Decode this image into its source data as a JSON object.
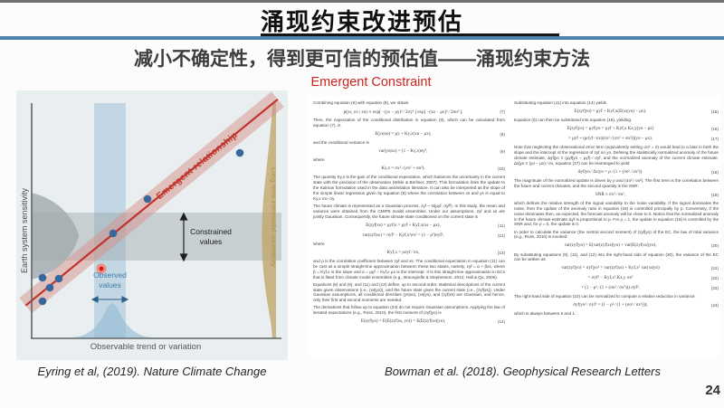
{
  "slide": {
    "title": "涌现约束改进预估",
    "subtitle": "减小不确定性，得到更可信的预估值——涌现约束方法",
    "tagline": "Emergent Constraint",
    "page_number": "24",
    "accent_blue": "#4d85ac",
    "tagline_color": "#cd251c"
  },
  "figure": {
    "caption": "Eyring et al, (2019). Nature Climate Change",
    "y_axis_label": "Earth system sensitivity",
    "x_axis_label": "Observable trend or variation",
    "relationship_label": "Emergent relationship",
    "right_dist_label": "Long-term intermodel uncertainty",
    "constrained_label": "Constrained values",
    "observed_label": "Observed values",
    "colors": {
      "background": "#e9eef1",
      "regression_line": "#bf332a",
      "confidence_band": "#d8918a",
      "model_point": "#38679e",
      "observed_point_core": "#cc1d12",
      "observed_point_ring": "#ef9088",
      "observed_band": "#a9c7da",
      "constrained_band": "#9aa4a8",
      "intermodel_dist": "#c0a66c",
      "label_red": "#c03a2f",
      "label_blue": "#3d7dad",
      "label_tan": "#ad924e"
    },
    "model_points": [
      [
        29,
        207
      ],
      [
        47,
        208
      ],
      [
        37,
        218
      ],
      [
        29,
        233
      ],
      [
        107,
        158
      ],
      [
        145,
        120
      ],
      [
        247,
        69
      ]
    ],
    "observed_point": [
      94,
      197
    ]
  },
  "paper": {
    "caption": "Bowman et al. (2018). Geophysical Research Letters",
    "col1": [
      {
        "type": "p",
        "text": "Combining equation (6) with equation (8), we obtain"
      },
      {
        "type": "eq",
        "num": "(7)",
        "text": "p(ys, yo | xo) ∝ exp[ −(ys − μy)² ⁄ 2σy² ] exp[ −(xo − μx)² ⁄ 2σo² ]."
      },
      {
        "type": "p",
        "text": "Then, the expectation of the conditional distribution in equation (8), which can be calculated from equation (7), is"
      },
      {
        "type": "eq",
        "num": "(8)",
        "text": "E(ys|xo) = μy + Ky,x(xo − μx),"
      },
      {
        "type": "p",
        "text": "and the conditional variance is"
      },
      {
        "type": "eq",
        "num": "(9)",
        "text": "var(ys|xo) = (1 − Ky,x)σy²,"
      },
      {
        "type": "p",
        "text": "where"
      },
      {
        "type": "eq",
        "num": "(10)",
        "text": "Ky,x = σx² ⁄ (σx² + σo²)."
      },
      {
        "type": "p",
        "text": "The quantity Ky,x is the gain of the conditional expectation, which balances the uncertainty in the current state with the precision of the observation (Wikle & Berliner, 2007). This formulation links the update to the Kalman formulation used in the data assimilation literature. It can also be interpreted as the slope of the simple linear regression given by equation (8) where the correlation between xs and ys is equal to Ky,x σx ⁄ σy."
      },
      {
        "type": "p",
        "text": "The future climate is represented as a Gaussian process, zyf ~ N(μyf, σyf²). In this study, the mean and variance were obtained from the CMIP5 model ensembles. Under our assumptions, zyf and xs are jointly Gaussian. Consequently, the future climate state conditioned on the current state is"
      },
      {
        "type": "eq",
        "num": "(11)",
        "text": "E(zyf|xs) = μyf|x = μyf + Kyf,x(xs − μx),"
      },
      {
        "type": "eq",
        "num": "(12)",
        "text": "var(zyf|xs) = σyf² − Kyf,x²σx² = (1 − ρ²)σyf²,"
      },
      {
        "type": "p",
        "text": "where"
      },
      {
        "type": "eq",
        "num": "(13)",
        "text": "Kyf,x = ρσyf ⁄ σx,"
      },
      {
        "type": "p",
        "text": "and ρ is the correlation coefficient between zyf and xs. The conditional expectation in equation (11) can be cast as a simple straight-line approximation between these two states, namely, zyf = α + βxs, where β = Kyf,x is the slope and α = μyf − Kyf,x μx is the intercept. It is this straight-line approximation in ECs that is fitted from climate model ensembles (e.g., Bracegirdle & Stephenson, 2012; Hall & Qu, 2006)."
      },
      {
        "type": "p",
        "text": "Equations (8) and (9), and (11) and (12) define, up to second-order, statistical descriptions of the current state given observations (i.e., (xs|yo)), and the future state given the current state (i.e., (zyf|xs)). Under Gaussian assumptions, all conditional densities (ys|xo), (xs|yo), and (zyf|xs) are Gaussian, and hence, only their first and second moments are needed."
      },
      {
        "type": "p",
        "text": "The derivations that follow up to equation (24) do not require Gaussian assumptions. Applying the law of iterated expectations (e.g., Ross, 2010), the first moment of (zyf|yo) is"
      },
      {
        "type": "eq",
        "num": "(14)",
        "text": "E(zyf|yo) = E(E(zyf|xs, yo)) = E(E(zyf|xs)|yo)."
      }
    ],
    "col2": [
      {
        "type": "p",
        "text": "Substituting equation (11) into equation (14) yields"
      },
      {
        "type": "eq",
        "num": "(15)",
        "text": "E(zyf|yo) = μyf + Kyf,x(E(xs|yo) − μx)."
      },
      {
        "type": "p",
        "text": "Equation (5) can then be substituted into equation (15), yielding"
      },
      {
        "type": "eq",
        "num": "(16)",
        "text": "E(zyf|yo) = μyf|yo = μyf + Kyf,x Kx,y(yo − μx)"
      },
      {
        "type": "eq",
        "num": "(17)",
        "text": "= μyf + (ρσyf ⁄ σx)(σx² ⁄ (σx² + σo²))(yo − μx)."
      },
      {
        "type": "p",
        "text": "Note that neglecting the observational error term (equivalently setting σo² = 0) would lead to a bias in both the slope and the intercept of the regression of zyf on yo. Defining the statistically normalized anomaly of the future climate estimate, Δyf|yo ≡ (μyf|yo − μyf) ⁄ σyf, and the normalized anomaly of the current climate estimate, Δx|yo ≡ (yo − μx) ⁄ σx, equation (17) can be rearranged to yield"
      },
      {
        "type": "eq",
        "num": "(18)",
        "text": "Δyf|yo ⁄ Δx|yo = ρ ⁄ (1 + (σo² ⁄ σx²))."
      },
      {
        "type": "p",
        "text": "The magnitude of the normalized update is driven by ρ and (σo² ⁄ σx²). The first term is the correlation between the future and current climates, and the second quantity is the SNR:"
      },
      {
        "type": "eq",
        "num": "(19)",
        "text": "SNR ≡ σx² ⁄ σo²,"
      },
      {
        "type": "p",
        "text": "which defines the relative strength of the signal variability to the noise variability. If the signal dominates the noise, then the update of the anomaly ratio in equation (18) is controlled principally by ρ. Conversely, if the noise dominates then, as expected, the forecast anomaly will be close to 0. Notice that the normalized anomaly in the future climate estimate Δyf is proportional to ρ. For ρ = 1, the update in equation (18) is controlled by the SNR and, for ρ = 0, the update is 0."
      },
      {
        "type": "p",
        "text": "In order to calculate the variance (the central second moment) of (zyf|yo) of the EC, the law of total variance (e.g., Ross, 2010) is invoked:"
      },
      {
        "type": "eq",
        "num": "(20)",
        "text": "var(zyf|yo) = E(var(zyf|xs)|yo) + var(E(zyf|xs)|yo)."
      },
      {
        "type": "p",
        "text": "By substituting equations (9), (11), and (12) into the right-hand side of equation (20), the variance of the EC can be written as"
      },
      {
        "type": "eq",
        "num": "(21)",
        "text": "var(zyf|yo) = σyf|yo² = var(zyf|xs) + Kyf,x² var(xs|yo)"
      },
      {
        "type": "eq",
        "num": "(22)",
        "text": "= σyf² − Kyf,x² Kx,y σx²"
      },
      {
        "type": "eq",
        "num": "(23)",
        "text": "= (1 − ρ² ⁄ (1 + (σo² ⁄ σx²))) σyf²."
      },
      {
        "type": "p",
        "text": "The right-hand side of equation (22) can be normalized to compute a relative reduction in variance:"
      },
      {
        "type": "eq",
        "num": "(24)",
        "text": "σyf|yo² ⁄ σyf² = (1 − ρ² ⁄ (1 + (σo² ⁄ σx²))),"
      },
      {
        "type": "p",
        "text": "which is always between 0 and 1."
      }
    ]
  }
}
